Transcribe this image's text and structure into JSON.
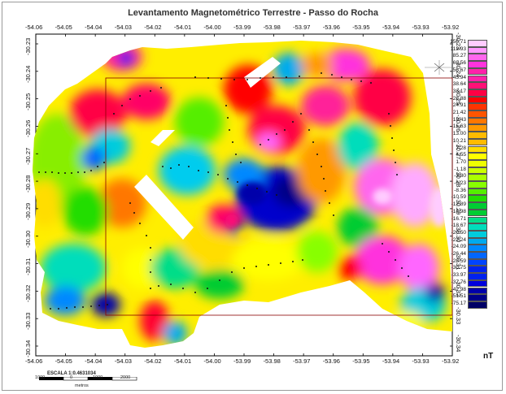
{
  "title": "Levantamento Magnetométrico Terrestre - Passo do Rocha",
  "map_data": {
    "x_ticks": [
      "-54.06",
      "-54.05",
      "-54.04",
      "-54.03",
      "-54.02",
      "-54.01",
      "-54.00",
      "-53.99",
      "-53.98",
      "-53.97",
      "-53.96",
      "-53.95",
      "-53.94",
      "-53.93",
      "-53.92"
    ],
    "y_ticks": [
      "-30.23",
      "-30.24",
      "-30.25",
      "-30.26",
      "-30.27",
      "-30.28",
      "-30.29",
      "-30.30",
      "-30.31",
      "-30.32",
      "-30.33",
      "-30.34"
    ],
    "y_ticks_right": [
      "-30.23",
      "-30.24",
      "-30.25",
      "-30.26",
      "-30.27",
      "-30.28",
      "-30.29",
      "-30.30",
      "-30.31",
      "-30.32",
      "-30.33",
      "-30.34"
    ],
    "y_ticks_right_top": [
      "-30.23",
      "-30.24"
    ],
    "y_ticks_right_bottom": [
      "-30.33",
      "-30.34"
    ]
  },
  "legend": {
    "unit": "nT",
    "colors": [
      "#ffccff",
      "#ff99ff",
      "#ff66ee",
      "#ff33dd",
      "#ff22aa",
      "#ff1177",
      "#ff0044",
      "#ff0000",
      "#ff3300",
      "#ff5500",
      "#ff7700",
      "#ff9900",
      "#ffbb00",
      "#ffdd00",
      "#ffff00",
      "#eeff00",
      "#ccff00",
      "#aaff00",
      "#88ff00",
      "#55ee00",
      "#22dd00",
      "#00cc33",
      "#00dd88",
      "#00ddbb",
      "#00ccdd",
      "#00aaee",
      "#0088ff",
      "#0066ff",
      "#0044ff",
      "#0022ee",
      "#0000dd",
      "#0000aa",
      "#000088",
      "#000066"
    ],
    "labels": [
      "156.71",
      "112.93",
      "85.27",
      "69.56",
      "56.67",
      "45.94",
      "38.64",
      "33.17",
      "28.88",
      "24.91",
      "21.42",
      "18.43",
      "15.63",
      "13.00",
      "10.21",
      "7.28",
      "4.55",
      "1.70",
      "-1.18",
      "-3.80",
      "-6.23",
      "-8.36",
      "-10.59",
      "-12.89",
      "-14.98",
      "-16.71",
      "-18.67",
      "-20.50",
      "-22.24",
      "-24.09",
      "-26.44",
      "-28.59",
      "-30.75",
      "-33.97",
      "-37.76",
      "-42.98",
      "-51.51",
      "-75.17"
    ]
  },
  "scale": {
    "text": "ESCALA 1:0.4631034",
    "labels": [
      "1000",
      "0",
      "1000",
      "2000"
    ],
    "unit": "metros"
  }
}
